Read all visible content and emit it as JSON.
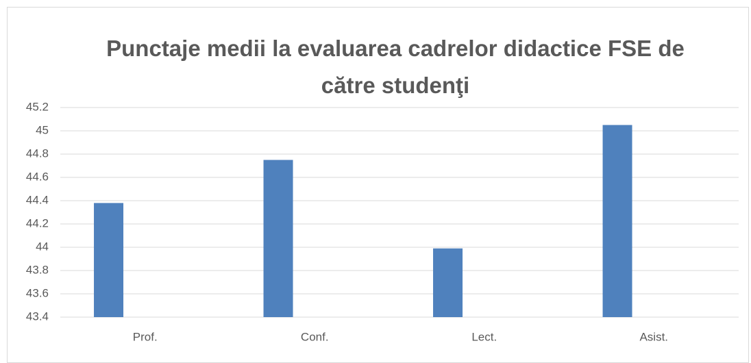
{
  "chart_data": {
    "type": "bar",
    "title": "Punctaje medii la evaluarea cadrelor didactice FSE de către studenţi",
    "categories": [
      "Prof.",
      "Conf.",
      "Lect.",
      "Asist."
    ],
    "values": [
      44.38,
      44.75,
      43.99,
      45.05
    ],
    "color": "#4f81bd",
    "ylim": [
      43.4,
      45.2
    ],
    "yticks": [
      43.4,
      43.6,
      43.8,
      44,
      44.2,
      44.4,
      44.6,
      44.8,
      45,
      45.2
    ],
    "grid": true
  }
}
